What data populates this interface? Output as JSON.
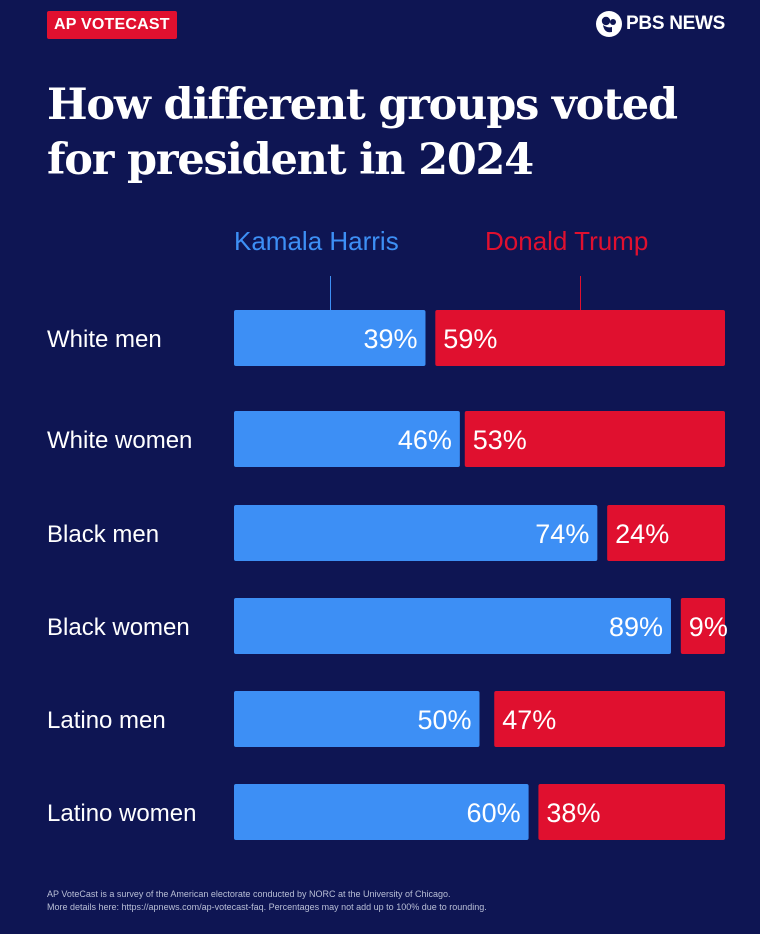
{
  "header": {
    "badge": "AP VOTECAST",
    "brand": "PBS NEWS",
    "brand_icon": "pbs-logo-icon"
  },
  "chart_data": {
    "type": "bar",
    "stacked": "horizontal",
    "title": "How different groups voted for president in 2024",
    "categories": [
      "White men",
      "White women",
      "Black men",
      "Black women",
      "Latino men",
      "Latino women"
    ],
    "series": [
      {
        "name": "Kamala Harris",
        "color": "#3d8ff5",
        "values": [
          39,
          46,
          74,
          89,
          50,
          60
        ]
      },
      {
        "name": "Donald Trump",
        "color": "#e0102f",
        "values": [
          59,
          53,
          24,
          9,
          47,
          38
        ]
      }
    ],
    "value_suffix": "%",
    "xlim": [
      0,
      100
    ],
    "legend": "top"
  },
  "footnote": {
    "line1": "AP VoteCast is a survey of the American electorate conducted by NORC at the University of Chicago.",
    "line2": "More details here: https://apnews.com/ap-votecast-faq. Percentages may not add up to 100% due to rounding."
  }
}
